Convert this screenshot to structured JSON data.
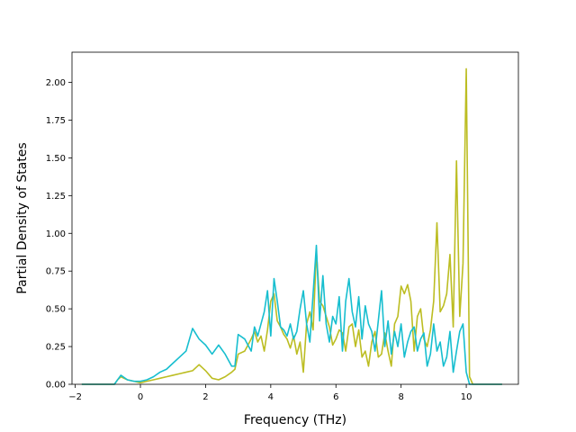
{
  "chart_data": {
    "type": "line",
    "title": "",
    "xlabel": "Frequency (THz)",
    "ylabel": "Partial Density of States",
    "xlim": [
      -2.1,
      11.6
    ],
    "ylim": [
      0.0,
      2.2
    ],
    "xticks": [
      -2,
      0,
      2,
      4,
      6,
      8,
      10
    ],
    "xtick_labels": [
      "−2",
      "0",
      "2",
      "4",
      "6",
      "8",
      "10"
    ],
    "yticks": [
      0.0,
      0.25,
      0.5,
      0.75,
      1.0,
      1.25,
      1.5,
      1.75,
      2.0
    ],
    "ytick_labels": [
      "0.00",
      "0.25",
      "0.50",
      "0.75",
      "1.00",
      "1.25",
      "1.50",
      "1.75",
      "2.00"
    ],
    "grid": false,
    "legend": "none",
    "series": [
      {
        "color": "#bcbd22",
        "x": [
          -1.8,
          -0.8,
          -0.7,
          -0.6,
          -0.4,
          -0.2,
          0.0,
          0.2,
          0.4,
          0.6,
          0.8,
          1.0,
          1.2,
          1.4,
          1.6,
          1.8,
          2.0,
          2.2,
          2.4,
          2.6,
          2.8,
          2.9,
          3.0,
          3.2,
          3.4,
          3.5,
          3.6,
          3.7,
          3.8,
          3.9,
          4.0,
          4.1,
          4.2,
          4.3,
          4.4,
          4.5,
          4.6,
          4.7,
          4.8,
          4.9,
          5.0,
          5.1,
          5.2,
          5.3,
          5.4,
          5.5,
          5.6,
          5.7,
          5.8,
          5.9,
          6.0,
          6.1,
          6.2,
          6.3,
          6.4,
          6.5,
          6.6,
          6.7,
          6.8,
          6.9,
          7.0,
          7.1,
          7.2,
          7.3,
          7.4,
          7.5,
          7.6,
          7.7,
          7.8,
          7.9,
          8.0,
          8.1,
          8.2,
          8.3,
          8.4,
          8.5,
          8.6,
          8.7,
          8.8,
          8.9,
          9.0,
          9.1,
          9.2,
          9.3,
          9.4,
          9.5,
          9.6,
          9.7,
          9.8,
          9.9,
          10.0,
          10.1,
          10.2,
          10.3,
          11.1
        ],
        "y": [
          0,
          0,
          0.03,
          0.05,
          0.03,
          0.02,
          0.01,
          0.02,
          0.03,
          0.04,
          0.05,
          0.06,
          0.07,
          0.08,
          0.09,
          0.13,
          0.09,
          0.04,
          0.03,
          0.05,
          0.08,
          0.1,
          0.2,
          0.22,
          0.3,
          0.35,
          0.28,
          0.32,
          0.22,
          0.36,
          0.55,
          0.6,
          0.42,
          0.38,
          0.33,
          0.3,
          0.24,
          0.32,
          0.2,
          0.28,
          0.08,
          0.4,
          0.48,
          0.36,
          0.88,
          0.55,
          0.52,
          0.45,
          0.38,
          0.26,
          0.3,
          0.36,
          0.34,
          0.22,
          0.38,
          0.4,
          0.25,
          0.36,
          0.18,
          0.22,
          0.12,
          0.28,
          0.35,
          0.18,
          0.2,
          0.34,
          0.22,
          0.12,
          0.4,
          0.45,
          0.65,
          0.6,
          0.66,
          0.55,
          0.22,
          0.45,
          0.5,
          0.3,
          0.25,
          0.36,
          0.55,
          1.07,
          0.48,
          0.52,
          0.6,
          0.86,
          0.38,
          1.48,
          0.45,
          0.8,
          2.09,
          0.05,
          0.0,
          0.0,
          0.0
        ]
      },
      {
        "color": "#17becf",
        "x": [
          -1.8,
          -0.8,
          -0.7,
          -0.6,
          -0.4,
          -0.2,
          0.0,
          0.2,
          0.4,
          0.6,
          0.8,
          1.0,
          1.2,
          1.4,
          1.6,
          1.8,
          2.0,
          2.2,
          2.4,
          2.6,
          2.8,
          2.9,
          3.0,
          3.2,
          3.4,
          3.5,
          3.6,
          3.7,
          3.8,
          3.9,
          4.0,
          4.1,
          4.2,
          4.3,
          4.4,
          4.5,
          4.6,
          4.7,
          4.8,
          4.9,
          5.0,
          5.1,
          5.2,
          5.3,
          5.4,
          5.5,
          5.6,
          5.7,
          5.8,
          5.9,
          6.0,
          6.1,
          6.2,
          6.3,
          6.4,
          6.5,
          6.6,
          6.7,
          6.8,
          6.9,
          7.0,
          7.1,
          7.2,
          7.3,
          7.4,
          7.5,
          7.6,
          7.7,
          7.8,
          7.9,
          8.0,
          8.1,
          8.2,
          8.3,
          8.4,
          8.5,
          8.6,
          8.7,
          8.8,
          8.9,
          9.0,
          9.1,
          9.2,
          9.3,
          9.4,
          9.5,
          9.6,
          9.7,
          9.8,
          9.9,
          10.0,
          10.1,
          10.2,
          10.3,
          11.1
        ],
        "y": [
          0,
          0,
          0.03,
          0.06,
          0.03,
          0.02,
          0.02,
          0.03,
          0.05,
          0.08,
          0.1,
          0.14,
          0.18,
          0.22,
          0.37,
          0.3,
          0.26,
          0.2,
          0.26,
          0.2,
          0.12,
          0.12,
          0.33,
          0.3,
          0.22,
          0.38,
          0.32,
          0.4,
          0.48,
          0.62,
          0.32,
          0.7,
          0.55,
          0.38,
          0.36,
          0.32,
          0.4,
          0.3,
          0.35,
          0.5,
          0.62,
          0.4,
          0.28,
          0.6,
          0.92,
          0.42,
          0.72,
          0.4,
          0.28,
          0.45,
          0.4,
          0.58,
          0.22,
          0.55,
          0.7,
          0.48,
          0.38,
          0.58,
          0.3,
          0.52,
          0.4,
          0.35,
          0.22,
          0.42,
          0.62,
          0.25,
          0.42,
          0.2,
          0.35,
          0.25,
          0.4,
          0.18,
          0.28,
          0.35,
          0.38,
          0.22,
          0.3,
          0.34,
          0.12,
          0.2,
          0.4,
          0.22,
          0.28,
          0.12,
          0.18,
          0.35,
          0.08,
          0.22,
          0.35,
          0.4,
          0.08,
          0.0,
          0.0,
          0.0,
          0.0
        ]
      }
    ]
  }
}
